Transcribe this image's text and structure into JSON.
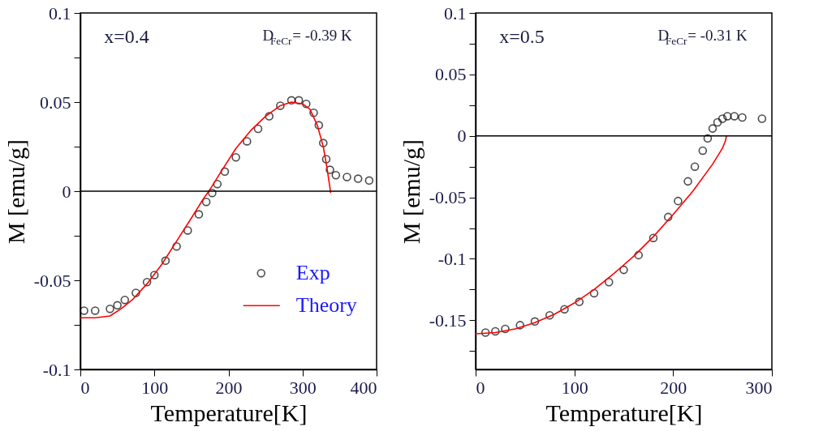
{
  "chart_data": [
    {
      "type": "scatter",
      "xlabel": "Temperature[K]",
      "ylabel": "M [emu/g]",
      "xlim": [
        0,
        400
      ],
      "ylim": [
        -0.1,
        0.1
      ],
      "xticks": [
        0,
        100,
        200,
        300,
        400
      ],
      "yticks": [
        -0.1,
        {
          "value": -0.075,
          "label": null
        },
        -0.05,
        {
          "value": -0.025,
          "label": null
        },
        0,
        {
          "value": 0.025,
          "label": null
        },
        0.05,
        {
          "value": 0.075,
          "label": null
        },
        0.1
      ],
      "annotations": [
        "x=0.4",
        "D$_{FeCr}$= -0.39 K"
      ],
      "ref_lines": [
        {
          "axis": "y",
          "value": 0,
          "color": "#000000"
        }
      ],
      "legend": "bottom right",
      "grid": false,
      "series": [
        {
          "name": "Exp",
          "marker": "circle",
          "color": "#000000",
          "x": [
            5,
            20,
            40,
            50,
            60,
            75,
            90,
            100,
            115,
            130,
            145,
            160,
            170,
            178,
            185,
            195,
            210,
            225,
            240,
            255,
            270,
            285,
            295,
            305,
            315,
            322,
            328,
            332,
            337,
            345,
            360,
            375,
            390
          ],
          "values": [
            -0.067,
            -0.067,
            -0.066,
            -0.064,
            -0.061,
            -0.057,
            -0.051,
            -0.047,
            -0.039,
            -0.031,
            -0.022,
            -0.013,
            -0.006,
            -0.001,
            0.004,
            0.011,
            0.019,
            0.028,
            0.035,
            0.042,
            0.048,
            0.051,
            0.051,
            0.049,
            0.044,
            0.037,
            0.027,
            0.018,
            0.012,
            0.009,
            0.008,
            0.007,
            0.006
          ]
        },
        {
          "name": "Theory",
          "type": "line",
          "color": "#ff0000",
          "x": [
            0,
            20,
            40,
            55,
            70,
            90,
            110,
            130,
            150,
            165,
            175,
            190,
            210,
            230,
            250,
            270,
            285,
            300,
            310,
            320,
            328,
            333,
            337,
            338
          ],
          "values": [
            -0.071,
            -0.071,
            -0.07,
            -0.066,
            -0.061,
            -0.052,
            -0.041,
            -0.028,
            -0.015,
            -0.005,
            0.001,
            0.011,
            0.024,
            0.034,
            0.042,
            0.048,
            0.05,
            0.049,
            0.046,
            0.037,
            0.025,
            0.013,
            0.002,
            -0.001
          ]
        }
      ]
    },
    {
      "type": "scatter",
      "xlabel": "Temperature[K]",
      "ylabel": "M [emu/g]",
      "xlim": [
        0,
        300
      ],
      "ylim": [
        -0.19,
        0.1
      ],
      "xticks": [
        0,
        100,
        200,
        300
      ],
      "yticks": [
        {
          "value": -0.175,
          "label": null
        },
        -0.15,
        {
          "value": -0.125,
          "label": null
        },
        -0.1,
        {
          "value": -0.075,
          "label": null
        },
        -0.05,
        {
          "value": -0.025,
          "label": null
        },
        0,
        {
          "value": 0.025,
          "label": null
        },
        0.05,
        {
          "value": 0.075,
          "label": null
        },
        0.1
      ],
      "annotations": [
        "x=0.5",
        "D$_{FeCr}$= -0.31 K"
      ],
      "ref_lines": [
        {
          "axis": "y",
          "value": 0,
          "color": "#000000"
        }
      ],
      "grid": false,
      "series": [
        {
          "marker": "circle",
          "color": "#000000",
          "x": [
            10,
            20,
            30,
            45,
            60,
            75,
            90,
            105,
            120,
            135,
            150,
            165,
            180,
            195,
            205,
            215,
            222,
            230,
            235,
            240,
            245,
            250,
            255,
            262,
            270,
            290
          ],
          "values": [
            -0.16,
            -0.159,
            -0.157,
            -0.154,
            -0.151,
            -0.146,
            -0.141,
            -0.135,
            -0.128,
            -0.119,
            -0.109,
            -0.097,
            -0.083,
            -0.066,
            -0.053,
            -0.037,
            -0.025,
            -0.012,
            -0.002,
            0.006,
            0.011,
            0.014,
            0.016,
            0.016,
            0.015,
            0.014
          ]
        },
        {
          "type": "line",
          "color": "#ff0000",
          "x": [
            0,
            20,
            40,
            60,
            80,
            100,
            120,
            140,
            160,
            180,
            200,
            220,
            240,
            250,
            253,
            254
          ],
          "values": [
            -0.161,
            -0.16,
            -0.157,
            -0.152,
            -0.145,
            -0.136,
            -0.125,
            -0.112,
            -0.098,
            -0.082,
            -0.064,
            -0.045,
            -0.023,
            -0.01,
            -0.004,
            0.0
          ]
        }
      ]
    }
  ]
}
